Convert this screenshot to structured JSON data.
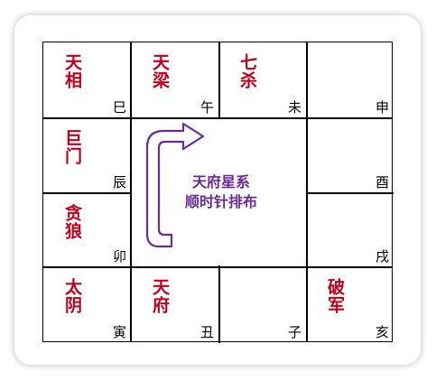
{
  "palaces": [
    {
      "id": "si",
      "star": "天相",
      "branch": "巳"
    },
    {
      "id": "wu",
      "star": "天梁",
      "branch": "午"
    },
    {
      "id": "wei",
      "star": "七杀",
      "branch": "未"
    },
    {
      "id": "shen",
      "star": "",
      "branch": "申"
    },
    {
      "id": "chen",
      "star": "巨门",
      "branch": "辰"
    },
    {
      "id": "you",
      "star": "",
      "branch": "酉"
    },
    {
      "id": "mao",
      "star": "贪狼",
      "branch": "卯"
    },
    {
      "id": "xu",
      "star": "",
      "branch": "戌"
    },
    {
      "id": "yin",
      "star": "太阴",
      "branch": "寅"
    },
    {
      "id": "chou",
      "star": "天府",
      "branch": "丑"
    },
    {
      "id": "zi",
      "star": "",
      "branch": "子"
    },
    {
      "id": "hai",
      "star": "破军",
      "branch": "亥"
    }
  ],
  "center": {
    "line1": "天府星系",
    "line2": "顺时针排布"
  },
  "colors": {
    "star_text": "#c0001a",
    "branch_text": "#000000",
    "center_text": "#6a2a9a",
    "arrow_stroke": "#6a2a9a"
  }
}
